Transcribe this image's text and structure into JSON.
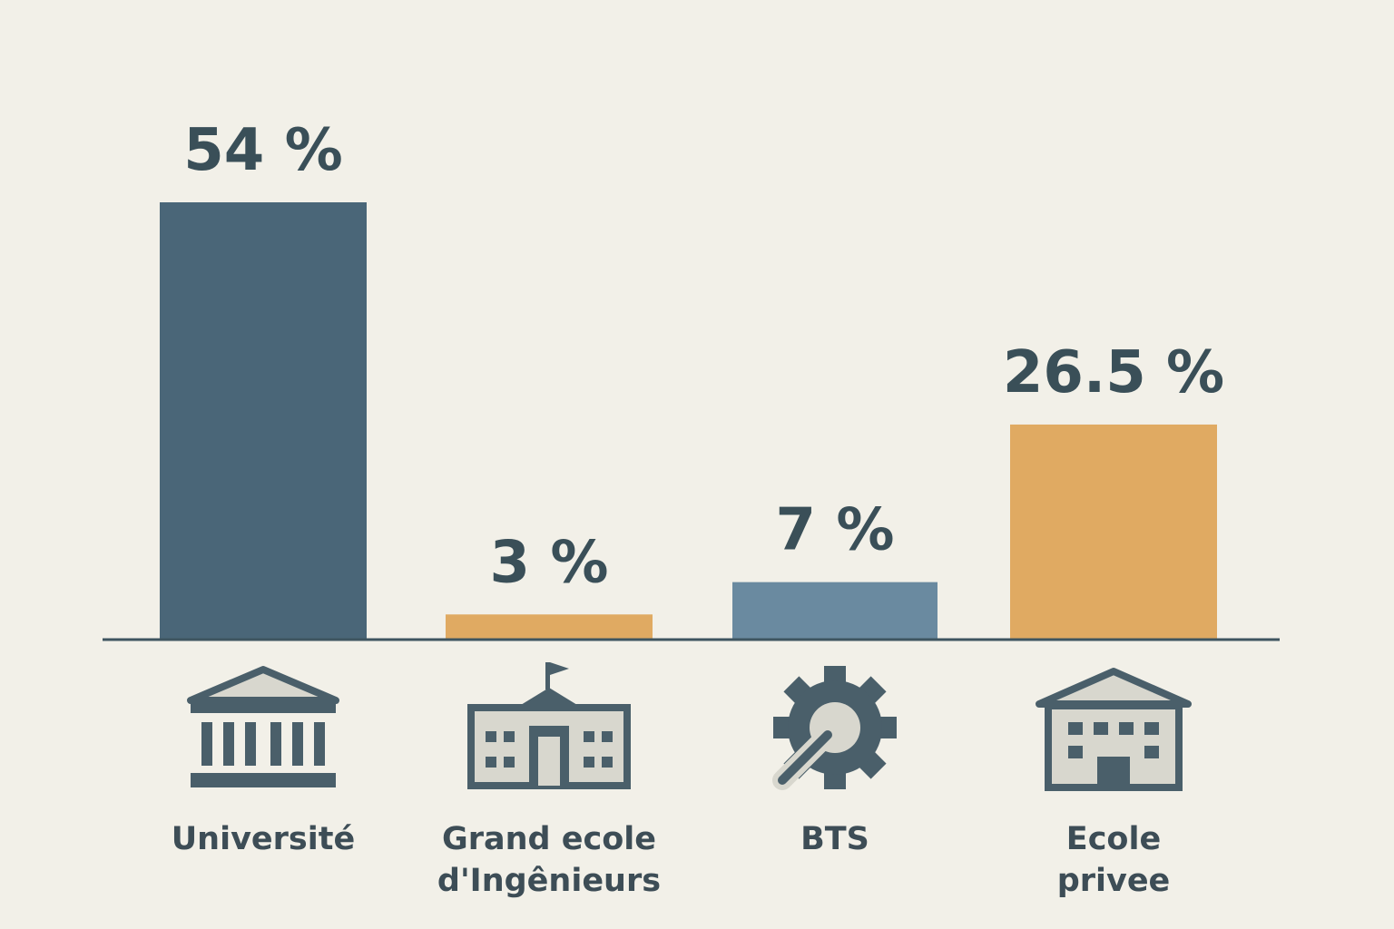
{
  "chart_data": {
    "type": "bar",
    "categories": [
      "Université",
      "Grand ecole d'Ingênieurs",
      "BTS",
      "Ecole privee"
    ],
    "values": [
      54,
      3,
      7,
      26.5
    ],
    "value_labels": [
      "54 %",
      "3 %",
      "7 %",
      "26.5 %"
    ],
    "colors": [
      "#4a6678",
      "#e0aa62",
      "#6a8aa0",
      "#e0aa62"
    ]
  }
}
